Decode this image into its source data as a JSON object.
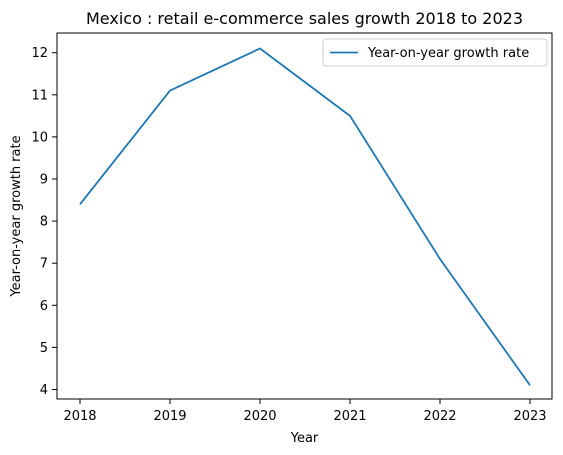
{
  "chart_data": {
    "type": "line",
    "title": "Mexico : retail e-commerce sales growth 2018 to 2023",
    "xlabel": "Year",
    "ylabel": "Year-on-year growth rate",
    "x": [
      "2018",
      "2019",
      "2020",
      "2021",
      "2022",
      "2023"
    ],
    "series": [
      {
        "name": "Year-on-year growth rate",
        "values": [
          8.4,
          11.1,
          12.1,
          10.5,
          7.1,
          4.1
        ],
        "color": "#1f77b4"
      }
    ],
    "yticks": [
      "4",
      "5",
      "6",
      "7",
      "8",
      "9",
      "10",
      "11",
      "12"
    ],
    "ylim": [
      3.7,
      12.5
    ],
    "grid": false,
    "legend_position": "top-right"
  }
}
